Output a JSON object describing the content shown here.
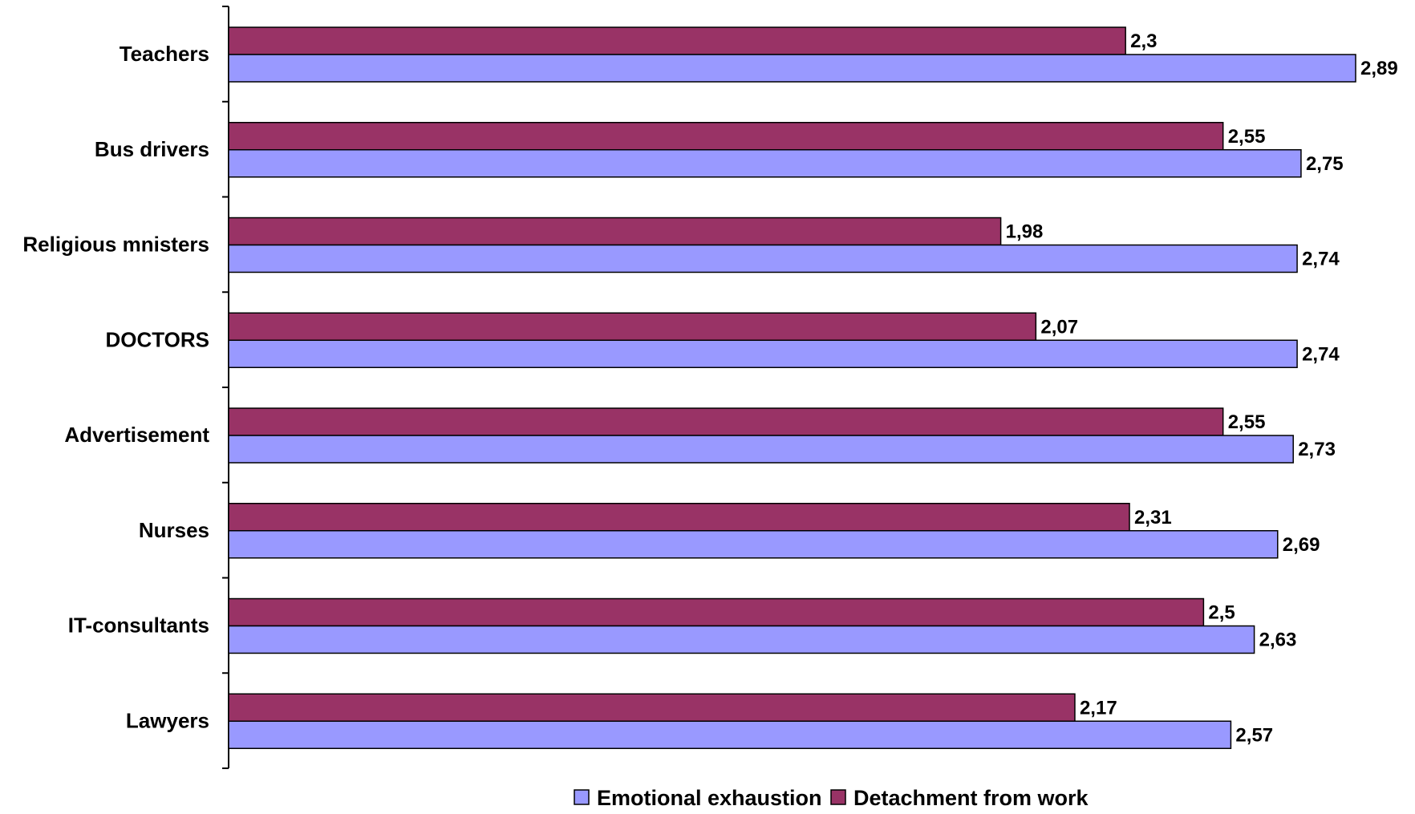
{
  "chart_data": {
    "type": "bar",
    "orientation": "horizontal",
    "categories": [
      "Teachers",
      "Bus drivers",
      "Religious mnisters",
      "DOCTORS",
      "Advertisement",
      "Nurses",
      "IT-consultants",
      "Lawyers"
    ],
    "series": [
      {
        "name": "Detachment from work",
        "color": "#993366",
        "values": [
          2.3,
          2.55,
          1.98,
          2.07,
          2.55,
          2.31,
          2.5,
          2.17
        ],
        "labels": [
          "2,3",
          "2,55",
          "1,98",
          "2,07",
          "2,55",
          "2,31",
          "2,5",
          "2,17"
        ]
      },
      {
        "name": "Emotional exhaustion",
        "color": "#9999FF",
        "values": [
          2.89,
          2.75,
          2.74,
          2.74,
          2.73,
          2.69,
          2.63,
          2.57
        ],
        "labels": [
          "2,89",
          "2,75",
          "2,74",
          "2,74",
          "2,73",
          "2,69",
          "2,63",
          "2,57"
        ]
      }
    ],
    "xlim": [
      0,
      2.89
    ],
    "legend": {
      "position": "bottom",
      "items": [
        "Emotional exhaustion",
        "Detachment from work"
      ]
    },
    "grid": false,
    "title": "",
    "xlabel": "",
    "ylabel": ""
  }
}
